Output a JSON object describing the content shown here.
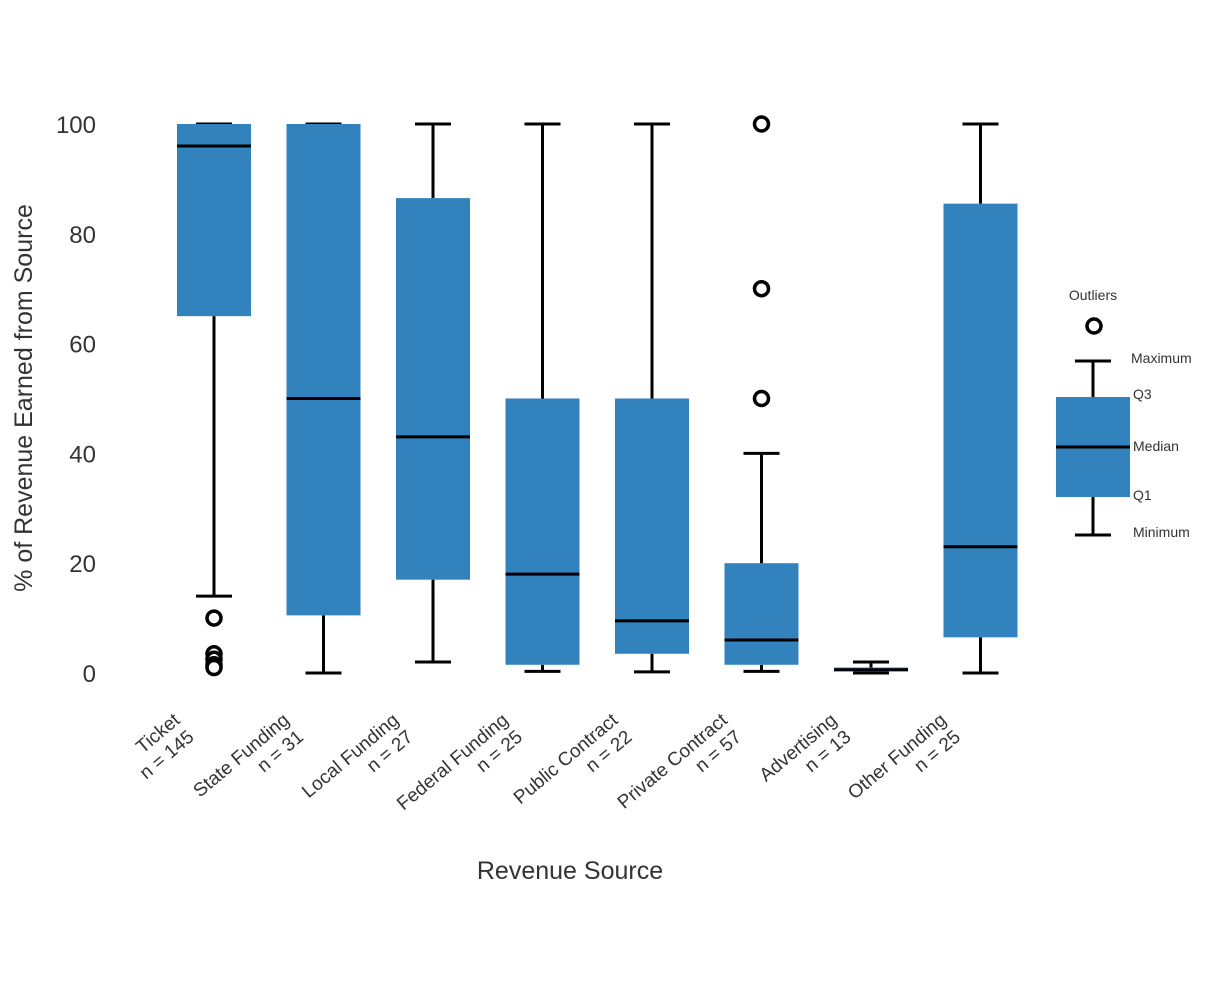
{
  "chart_data": {
    "type": "box",
    "title": "",
    "xlabel": "Revenue Source",
    "ylabel": "% of Revenue Earned from Source",
    "ylim": [
      0,
      100
    ],
    "yticks": [
      0,
      20,
      40,
      60,
      80,
      100
    ],
    "grid": false,
    "box_color": "#3182bd",
    "line_color": "#000000",
    "categories": [
      {
        "name": "Ticket",
        "n_label": "n = 145",
        "min": 14,
        "q1": 65,
        "median": 96,
        "q3": 100,
        "max": 100,
        "outliers": [
          10,
          3.5,
          2.5,
          1.5,
          1
        ]
      },
      {
        "name": "State Funding",
        "n_label": "n = 31",
        "min": 0,
        "q1": 10.5,
        "median": 50,
        "q3": 100,
        "max": 100,
        "outliers": []
      },
      {
        "name": "Local Funding",
        "n_label": "n = 27",
        "min": 2,
        "q1": 17,
        "median": 43,
        "q3": 86.5,
        "max": 100,
        "outliers": []
      },
      {
        "name": "Federal Funding",
        "n_label": "n = 25",
        "min": 0.3,
        "q1": 1.5,
        "median": 18,
        "q3": 50,
        "max": 100,
        "outliers": []
      },
      {
        "name": "Public Contract",
        "n_label": "n = 22",
        "min": 0.2,
        "q1": 3.5,
        "median": 9.5,
        "q3": 50,
        "max": 100,
        "outliers": []
      },
      {
        "name": "Private Contract",
        "n_label": "n = 57",
        "min": 0.3,
        "q1": 1.5,
        "median": 6,
        "q3": 20,
        "max": 40,
        "outliers": [
          100,
          70,
          50
        ]
      },
      {
        "name": "Advertising",
        "n_label": "n = 13",
        "min": 0,
        "q1": 0.3,
        "median": 0.6,
        "q3": 1,
        "max": 2,
        "outliers": []
      },
      {
        "name": "Other Funding",
        "n_label": "n = 25",
        "min": 0,
        "q1": 6.5,
        "median": 23,
        "q3": 85.5,
        "max": 100,
        "outliers": []
      }
    ],
    "legend": {
      "position": "right",
      "labels": {
        "outliers": "Outliers",
        "maximum": "Maximum",
        "q3": "Q3",
        "median": "Median",
        "q1": "Q1",
        "minimum": "Minimum"
      }
    }
  }
}
